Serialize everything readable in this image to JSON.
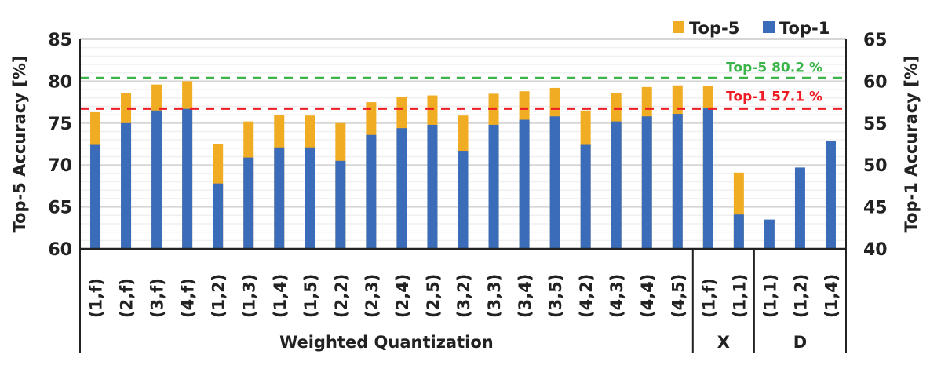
{
  "chart_data": {
    "type": "bar",
    "title": "",
    "ylabel": "Top-5 Accuracy [%]",
    "y2label": "Top-1 Accuracy [%]",
    "ylim": [
      60,
      85
    ],
    "y2lim": [
      40,
      65
    ],
    "yticks": [
      60,
      65,
      70,
      75,
      80,
      85
    ],
    "y2ticks": [
      40,
      45,
      50,
      55,
      60,
      65
    ],
    "grid": true,
    "legend_position": "top-right",
    "colors": {
      "top5": "#F0AC22",
      "top1": "#3A6CBA",
      "ref5": "#3BB54A",
      "ref1": "#EE1C25"
    },
    "categories": [
      "(1,f)",
      "(2,f)",
      "(3,f)",
      "(4,f)",
      "(1,2)",
      "(1,3)",
      "(1,4)",
      "(1,5)",
      "(2,2)",
      "(2,3)",
      "(2,4)",
      "(2,5)",
      "(3,2)",
      "(3,3)",
      "(3,4)",
      "(3,5)",
      "(4,2)",
      "(4,3)",
      "(4,4)",
      "(4,5)",
      "(1,f)",
      "(1,1)",
      "(1,1)",
      "(1,2)",
      "(1,4)"
    ],
    "groups": [
      {
        "label": "Weighted Quantization",
        "count": 20
      },
      {
        "label": "X",
        "count": 2
      },
      {
        "label": "D",
        "count": 3
      }
    ],
    "series": [
      {
        "name": "Top-5",
        "axis": "left",
        "values": [
          76.3,
          78.6,
          79.6,
          80.0,
          72.5,
          75.2,
          76.0,
          75.9,
          75.0,
          77.5,
          78.1,
          78.3,
          75.9,
          78.5,
          78.8,
          79.2,
          76.5,
          78.6,
          79.3,
          79.5,
          79.4,
          69.1,
          null,
          null,
          null
        ]
      },
      {
        "name": "Top-1",
        "axis": "right",
        "values": [
          52.4,
          55.0,
          56.5,
          56.7,
          47.8,
          50.9,
          52.1,
          52.1,
          50.5,
          53.6,
          54.4,
          54.8,
          51.7,
          54.8,
          55.4,
          55.8,
          52.4,
          55.2,
          55.8,
          56.1,
          56.8,
          44.1,
          43.5,
          49.7,
          52.9
        ]
      }
    ],
    "reference_lines": [
      {
        "label": "Top-5 80.2 %",
        "axis": "left",
        "value": 80.2
      },
      {
        "label": "Top-1 57.1 %",
        "axis": "right",
        "value": 57.1
      }
    ],
    "legend": [
      "Top-5",
      "Top-1"
    ]
  }
}
